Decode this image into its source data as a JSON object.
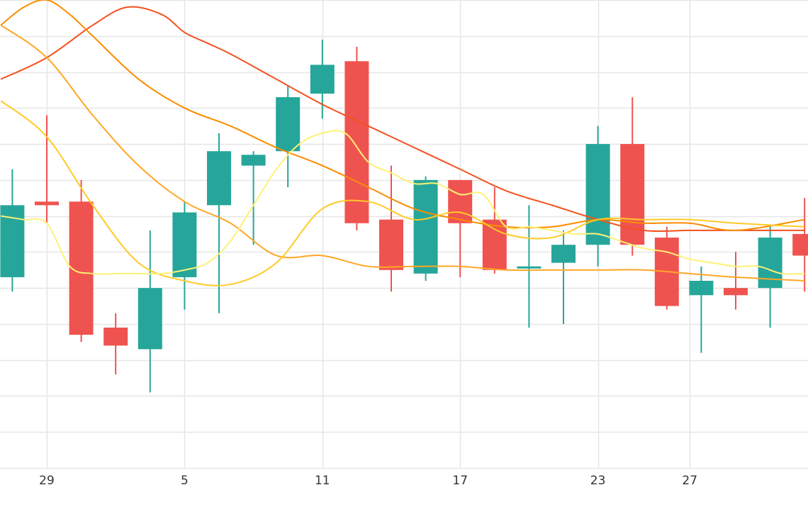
{
  "chart_data": {
    "type": "candlestick",
    "title": "",
    "xlabel": "",
    "ylabel": "",
    "grid": true,
    "legend": "none",
    "x_tick_labels": [
      {
        "day": 2,
        "label": "29"
      },
      {
        "day": 8,
        "label": "5"
      },
      {
        "day": 14,
        "label": "11"
      },
      {
        "day": 20,
        "label": "17"
      },
      {
        "day": 26,
        "label": "23"
      },
      {
        "day": 30,
        "label": "27"
      }
    ],
    "x_range": [
      0.0,
      35.0
    ],
    "y_range": [
      0.0,
      13.0
    ],
    "y_grid_step": 1,
    "colors": {
      "up": "#26a69a",
      "down": "#ef5350",
      "grid": "#e6e6e6"
    },
    "candles": [
      {
        "day": 0.5,
        "open": 5.3,
        "high": 8.3,
        "low": 4.9,
        "close": 7.3
      },
      {
        "day": 2,
        "open": 7.4,
        "high": 9.8,
        "low": 6.8,
        "close": 7.3
      },
      {
        "day": 3.5,
        "open": 7.4,
        "high": 8.0,
        "low": 3.5,
        "close": 3.7
      },
      {
        "day": 5,
        "open": 3.9,
        "high": 4.3,
        "low": 2.6,
        "close": 3.4
      },
      {
        "day": 6.5,
        "open": 3.3,
        "high": 6.6,
        "low": 2.1,
        "close": 5.0
      },
      {
        "day": 8,
        "open": 5.3,
        "high": 7.4,
        "low": 4.4,
        "close": 7.1
      },
      {
        "day": 9.5,
        "open": 7.3,
        "high": 9.3,
        "low": 4.3,
        "close": 8.8
      },
      {
        "day": 11,
        "open": 8.4,
        "high": 8.8,
        "low": 6.2,
        "close": 8.7
      },
      {
        "day": 12.5,
        "open": 8.8,
        "high": 10.6,
        "low": 7.8,
        "close": 10.3
      },
      {
        "day": 14,
        "open": 10.4,
        "high": 11.9,
        "low": 9.7,
        "close": 11.2
      },
      {
        "day": 15.5,
        "open": 11.3,
        "high": 11.7,
        "low": 6.6,
        "close": 6.8
      },
      {
        "day": 17,
        "open": 6.9,
        "high": 8.4,
        "low": 4.9,
        "close": 5.5
      },
      {
        "day": 18.5,
        "open": 5.4,
        "high": 8.1,
        "low": 5.2,
        "close": 8.0
      },
      {
        "day": 20,
        "open": 8.0,
        "high": 8.0,
        "low": 5.3,
        "close": 6.8
      },
      {
        "day": 21.5,
        "open": 6.9,
        "high": 7.8,
        "low": 5.4,
        "close": 5.5
      },
      {
        "day": 23,
        "open": 5.6,
        "high": 7.3,
        "low": 3.9,
        "close": 5.6
      },
      {
        "day": 24.5,
        "open": 5.7,
        "high": 6.6,
        "low": 4.0,
        "close": 6.2
      },
      {
        "day": 26,
        "open": 6.2,
        "high": 9.5,
        "low": 5.6,
        "close": 9.0
      },
      {
        "day": 27.5,
        "open": 9.0,
        "high": 10.3,
        "low": 5.9,
        "close": 6.2
      },
      {
        "day": 29,
        "open": 6.4,
        "high": 6.7,
        "low": 4.4,
        "close": 4.5
      },
      {
        "day": 30.5,
        "open": 4.8,
        "high": 5.6,
        "low": 3.2,
        "close": 5.2
      },
      {
        "day": 32,
        "open": 5.0,
        "high": 6.0,
        "low": 4.4,
        "close": 4.8
      },
      {
        "day": 33.5,
        "open": 5.0,
        "high": 6.7,
        "low": 3.9,
        "close": 6.4
      },
      {
        "day": 35,
        "open": 6.5,
        "high": 7.5,
        "low": 4.9,
        "close": 5.9
      }
    ],
    "series": [
      {
        "type": "line",
        "color": "#f4511e",
        "x": [
          0,
          2,
          4,
          5.5,
          7,
          8,
          9,
          10,
          12,
          14,
          16,
          18,
          20,
          22,
          24,
          26,
          28,
          30,
          32,
          35
        ],
        "y": [
          10.8,
          11.4,
          12.3,
          12.8,
          12.6,
          12.1,
          11.8,
          11.5,
          10.8,
          10.1,
          9.5,
          8.9,
          8.3,
          7.7,
          7.3,
          6.9,
          6.6,
          6.6,
          6.6,
          6.6
        ]
      },
      {
        "type": "line",
        "color": "#fb8c00",
        "x": [
          0,
          1,
          2,
          3,
          4,
          6,
          8,
          10,
          12,
          14,
          16,
          18,
          20,
          22,
          24,
          26,
          28,
          30,
          32,
          35
        ],
        "y": [
          12.3,
          12.8,
          13.0,
          12.6,
          12.0,
          10.8,
          10.0,
          9.5,
          8.9,
          8.4,
          7.8,
          7.2,
          6.9,
          6.7,
          6.7,
          6.9,
          6.8,
          6.8,
          6.6,
          6.9
        ]
      },
      {
        "type": "line",
        "color": "#ffa726",
        "x": [
          0,
          2,
          4,
          6,
          8,
          10,
          12,
          14,
          16,
          18,
          20,
          22,
          24,
          26,
          28,
          30,
          32,
          35
        ],
        "y": [
          12.3,
          11.4,
          9.8,
          8.4,
          7.4,
          6.8,
          5.9,
          5.9,
          5.6,
          5.6,
          5.6,
          5.5,
          5.5,
          5.5,
          5.5,
          5.4,
          5.3,
          5.2
        ]
      },
      {
        "type": "line",
        "color": "#ffca28",
        "x": [
          0,
          2,
          4,
          6,
          8,
          10,
          12,
          14,
          16,
          18,
          20,
          22,
          24,
          26,
          28,
          30,
          32,
          35
        ],
        "y": [
          10.2,
          9.2,
          7.3,
          5.7,
          5.2,
          5.1,
          5.7,
          7.2,
          7.4,
          6.9,
          7.1,
          6.5,
          6.4,
          6.9,
          6.9,
          6.9,
          6.8,
          6.7
        ]
      },
      {
        "type": "line",
        "color": "#fff176",
        "x": [
          0,
          1,
          2,
          3,
          4,
          5,
          6,
          7,
          8,
          9,
          10,
          11,
          12,
          13,
          14,
          15,
          16,
          17,
          18,
          19,
          20,
          21,
          22,
          23,
          24,
          25,
          26,
          27,
          28,
          29,
          30,
          31,
          32,
          33,
          34,
          35
        ],
        "y": [
          7.0,
          6.9,
          6.8,
          5.6,
          5.4,
          5.4,
          5.4,
          5.4,
          5.5,
          5.7,
          6.3,
          7.3,
          8.3,
          9.0,
          9.3,
          9.3,
          8.5,
          8.2,
          7.9,
          7.9,
          7.6,
          7.6,
          6.7,
          6.7,
          6.6,
          6.5,
          6.5,
          6.3,
          6.1,
          6.0,
          5.8,
          5.7,
          5.6,
          5.6,
          5.4,
          5.4
        ]
      }
    ]
  }
}
